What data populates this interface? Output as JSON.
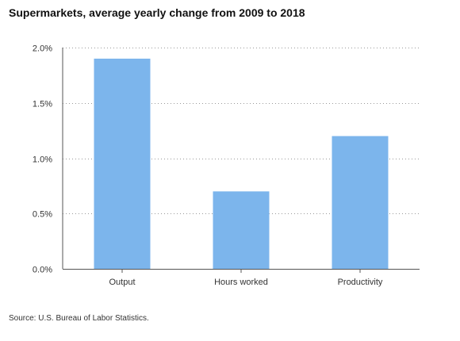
{
  "chart_data": {
    "type": "bar",
    "title": "Supermarkets, average yearly change from 2009 to 2018",
    "categories": [
      "Output",
      "Hours worked",
      "Productivity"
    ],
    "values": [
      1.9,
      0.7,
      1.2
    ],
    "unit": "%",
    "xlabel": "",
    "ylabel": "",
    "ylim": [
      0,
      2.0
    ],
    "yticks": [
      "0.0%",
      "0.5%",
      "1.0%",
      "1.5%",
      "2.0%"
    ],
    "ytick_values": [
      0,
      0.5,
      1.0,
      1.5,
      2.0
    ],
    "grid": "horizontal-dotted",
    "legend": "none",
    "bar_color": "#7cb5ec",
    "source": "Source: U.S. Bureau of Labor Statistics."
  }
}
